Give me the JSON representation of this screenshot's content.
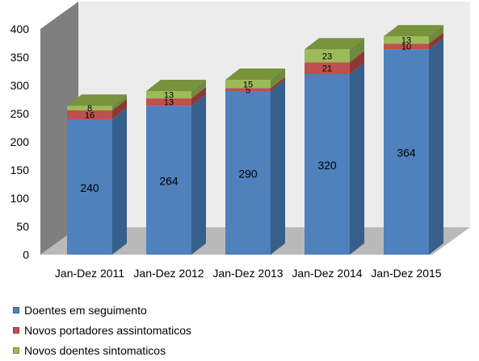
{
  "chart_data": {
    "type": "bar",
    "stacked": true,
    "three_d": true,
    "categories": [
      "Jan-Dez 2011",
      "Jan-Dez 2012",
      "Jan-Dez 2013",
      "Jan-Dez 2014",
      "Jan-Dez 2015"
    ],
    "series": [
      {
        "name": "Doentes em seguimento",
        "values": [
          240,
          264,
          290,
          320,
          364
        ],
        "color": "#4f81bd",
        "side_color": "#365f8c",
        "top_color": "#4f81bd"
      },
      {
        "name": "Novos portadores assintomaticos",
        "values": [
          16,
          13,
          5,
          21,
          10
        ],
        "color": "#c0504d",
        "side_color": "#8c3836",
        "top_color": "#c0504d"
      },
      {
        "name": "Novos doentes sintomaticos",
        "values": [
          8,
          13,
          15,
          23,
          13
        ],
        "color": "#9bbb59",
        "side_color": "#6e8a3a",
        "top_color": "#77933c"
      }
    ],
    "ylim": [
      0,
      400
    ],
    "yticks": [
      0,
      50,
      100,
      150,
      200,
      250,
      300,
      350,
      400
    ],
    "grid": false,
    "legend_position": "bottom-left",
    "wall_color": "#ececec",
    "floor_color": "#b9b9b9",
    "side_wall_color": "#7f7f7f"
  }
}
